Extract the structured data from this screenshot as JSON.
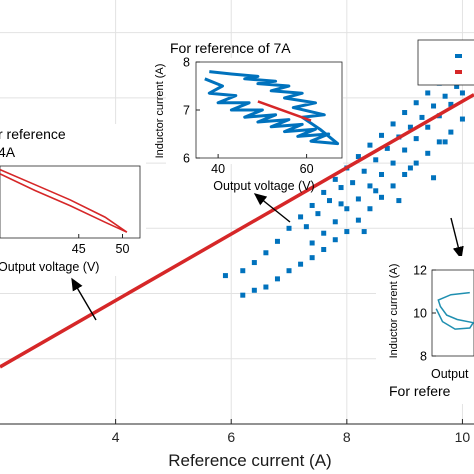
{
  "chart_data": [
    {
      "id": "main",
      "type": "scatter",
      "xlabel": "Reference current (A)",
      "ylabel": "",
      "xlim": [
        2,
        10.2
      ],
      "ylim": [
        0,
        13
      ],
      "xticks": [
        4,
        6,
        8,
        10
      ],
      "xtick_labels": [
        "4",
        "6",
        "8",
        "10"
      ],
      "grid": true,
      "series": [
        {
          "name": "",
          "color": "#0072BD",
          "marker": "square",
          "points": [
            [
              5.9,
              4.55
            ],
            [
              6.2,
              4.7
            ],
            [
              6.4,
              4.95
            ],
            [
              6.6,
              5.25
            ],
            [
              6.8,
              5.6
            ],
            [
              7.0,
              6.0
            ],
            [
              7.2,
              6.35
            ],
            [
              7.4,
              6.7
            ],
            [
              7.6,
              7.1
            ],
            [
              7.8,
              7.5
            ],
            [
              8.0,
              7.85
            ],
            [
              8.2,
              8.2
            ],
            [
              8.4,
              8.55
            ],
            [
              8.6,
              8.85
            ],
            [
              8.8,
              9.2
            ],
            [
              9.0,
              9.55
            ],
            [
              9.2,
              9.85
            ],
            [
              9.4,
              10.15
            ],
            [
              9.6,
              10.45
            ],
            [
              9.8,
              10.75
            ],
            [
              10.0,
              11.0
            ],
            [
              10.1,
              11.1
            ],
            [
              6.2,
              3.95
            ],
            [
              6.4,
              4.1
            ],
            [
              6.6,
              4.2
            ],
            [
              6.8,
              4.45
            ],
            [
              7.0,
              4.7
            ],
            [
              7.2,
              4.9
            ],
            [
              7.4,
              5.1
            ],
            [
              7.6,
              5.35
            ],
            [
              7.8,
              5.65
            ],
            [
              8.0,
              5.9
            ],
            [
              8.2,
              6.25
            ],
            [
              8.4,
              6.6
            ],
            [
              8.6,
              6.95
            ],
            [
              8.8,
              7.3
            ],
            [
              9.0,
              7.65
            ],
            [
              9.2,
              8.0
            ],
            [
              9.4,
              8.3
            ],
            [
              9.6,
              8.65
            ],
            [
              9.8,
              8.95
            ],
            [
              10.0,
              9.35
            ],
            [
              7.4,
              5.55
            ],
            [
              7.6,
              5.85
            ],
            [
              7.8,
              6.2
            ],
            [
              8.0,
              6.6
            ],
            [
              8.2,
              6.9
            ],
            [
              8.4,
              7.3
            ],
            [
              8.6,
              7.65
            ],
            [
              8.8,
              8.0
            ],
            [
              9.0,
              8.4
            ],
            [
              9.2,
              8.75
            ],
            [
              9.4,
              9.1
            ],
            [
              9.6,
              9.45
            ],
            [
              9.8,
              9.8
            ],
            [
              10.0,
              10.15
            ],
            [
              7.3,
              6.05
            ],
            [
              7.5,
              6.45
            ],
            [
              7.7,
              6.85
            ],
            [
              7.9,
              7.25
            ],
            [
              8.1,
              7.4
            ],
            [
              8.3,
              7.75
            ],
            [
              8.5,
              8.1
            ],
            [
              8.7,
              8.45
            ],
            [
              8.9,
              8.8
            ],
            [
              9.1,
              9.1
            ],
            [
              9.3,
              9.4
            ],
            [
              9.5,
              9.75
            ],
            [
              9.7,
              10.05
            ],
            [
              9.9,
              10.35
            ],
            [
              7.9,
              6.75
            ],
            [
              8.5,
              7.15
            ],
            [
              9.1,
              7.85
            ],
            [
              9.7,
              8.65
            ],
            [
              8.3,
              5.9
            ],
            [
              8.9,
              6.85
            ],
            [
              9.5,
              7.55
            ]
          ]
        },
        {
          "name": "",
          "color": "#D62728",
          "marker": "line",
          "points": [
            [
              2.0,
              1.75
            ],
            [
              10.2,
              10.1
            ]
          ]
        }
      ]
    },
    {
      "id": "inset-7a",
      "type": "line",
      "title": "For reference of 7A",
      "xlabel": "Output voltage (V)",
      "ylabel": "Inductor current (A)",
      "xlim": [
        35,
        68
      ],
      "ylim": [
        6,
        8
      ],
      "xticks": [
        40,
        60
      ],
      "xtick_labels": [
        "40",
        "60"
      ],
      "yticks": [
        6,
        7,
        8
      ],
      "ytick_labels": [
        "6",
        "7",
        "8"
      ],
      "grid": false,
      "series": [
        {
          "name": "",
          "color": "#0072BD",
          "points": [
            [
              37,
              7.65
            ],
            [
              41,
              7.5
            ],
            [
              38,
              7.35
            ],
            [
              44,
              7.3
            ],
            [
              40,
              7.15
            ],
            [
              47,
              7.15
            ],
            [
              43,
              7.0
            ],
            [
              50,
              7.0
            ],
            [
              46,
              6.85
            ],
            [
              53,
              6.9
            ],
            [
              49,
              6.75
            ],
            [
              56,
              6.8
            ],
            [
              52,
              6.65
            ],
            [
              59,
              6.7
            ],
            [
              55,
              6.55
            ],
            [
              62,
              6.6
            ],
            [
              58,
              6.45
            ],
            [
              65,
              6.5
            ],
            [
              61,
              6.35
            ],
            [
              67,
              6.3
            ],
            [
              63,
              6.6
            ],
            [
              59,
              6.85
            ],
            [
              64,
              6.9
            ],
            [
              57,
              7.05
            ],
            [
              62,
              7.15
            ],
            [
              55,
              7.25
            ],
            [
              59,
              7.35
            ],
            [
              52,
              7.4
            ],
            [
              56,
              7.5
            ],
            [
              49,
              7.55
            ],
            [
              53,
              7.6
            ],
            [
              46,
              7.65
            ],
            [
              49,
              7.7
            ],
            [
              43,
              7.75
            ],
            [
              38,
              7.8
            ]
          ]
        },
        {
          "name": "",
          "color": "#D62728",
          "points": [
            [
              49,
              7.18
            ],
            [
              61,
              6.78
            ]
          ]
        }
      ]
    },
    {
      "id": "inset-4a",
      "type": "line",
      "title": "r reference\n4A",
      "xlabel": "Output voltage (V)",
      "ylabel": "",
      "xlim": [
        36,
        52
      ],
      "ylim": [
        0,
        1
      ],
      "xticks": [
        45,
        50
      ],
      "xtick_labels": [
        "45",
        "50"
      ],
      "grid": false,
      "series": [
        {
          "name": "",
          "color": "#D62728",
          "points": [
            [
              36,
              0.95
            ],
            [
              40,
              0.74
            ],
            [
              44,
              0.53
            ],
            [
              48,
              0.29
            ],
            [
              50.5,
              0.08
            ],
            [
              48,
              0.22
            ],
            [
              44,
              0.45
            ],
            [
              40,
              0.66
            ],
            [
              36,
              0.89
            ]
          ]
        }
      ]
    },
    {
      "id": "inset-10a",
      "type": "line",
      "title": "For refere",
      "xlabel": "Output",
      "ylabel": "Inductor current (A)",
      "xlim": [
        0,
        1
      ],
      "ylim": [
        8,
        12
      ],
      "xticks": [],
      "xtick_labels": [],
      "yticks": [
        8,
        10,
        12
      ],
      "ytick_labels": [
        "8",
        "10",
        "12"
      ],
      "grid": false,
      "series": [
        {
          "name": "",
          "color": "#1F8FB0",
          "points": [
            [
              0.1,
              10.2
            ],
            [
              0.25,
              9.6
            ],
            [
              0.55,
              9.25
            ],
            [
              0.9,
              9.3
            ],
            [
              0.98,
              9.55
            ],
            [
              0.6,
              9.7
            ],
            [
              0.35,
              9.9
            ],
            [
              0.2,
              10.3
            ],
            [
              0.15,
              10.6
            ],
            [
              0.45,
              10.85
            ],
            [
              0.9,
              10.95
            ]
          ]
        }
      ]
    }
  ]
}
